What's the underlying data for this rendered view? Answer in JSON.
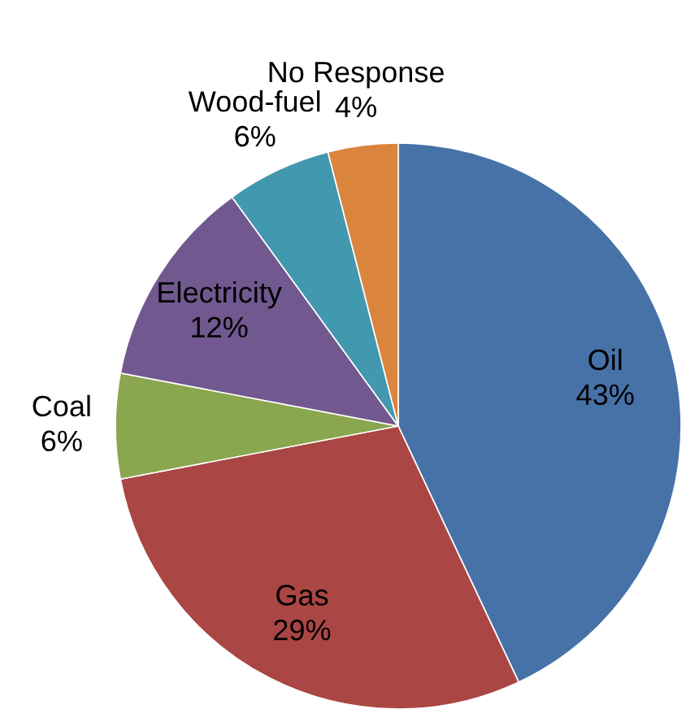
{
  "chart_data": {
    "type": "pie",
    "categories": [
      "Oil",
      "Gas",
      "Coal",
      "Electricity",
      "Wood-fuel",
      "No Response"
    ],
    "values": [
      43,
      29,
      6,
      12,
      6,
      4
    ],
    "colors": [
      "#4672a8",
      "#aa4644",
      "#8aa64f",
      "#71588f",
      "#4298ae",
      "#db843d"
    ],
    "value_labels": [
      "43%",
      "29%",
      "6%",
      "12%",
      "6%",
      "4%"
    ]
  }
}
